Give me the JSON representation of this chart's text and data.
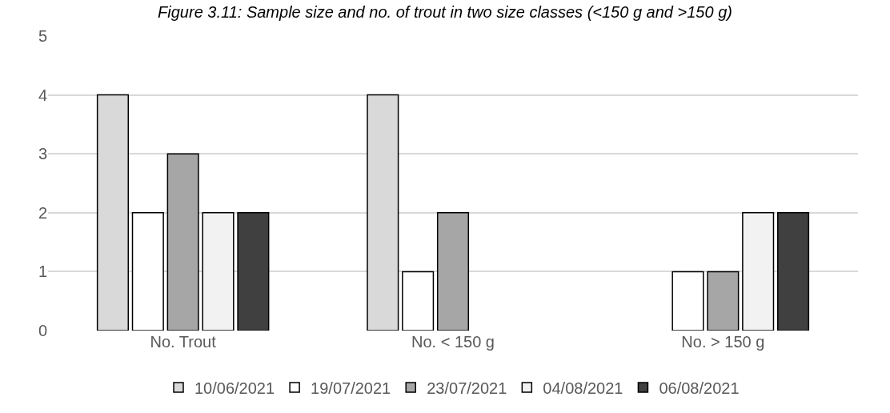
{
  "chart_data": {
    "type": "bar",
    "title": "Figure 3.11: Sample size and no. of trout in two size classes (<150 g and >150 g)",
    "categories": [
      "No. Trout",
      "No. < 150 g",
      "No. > 150 g"
    ],
    "series": [
      {
        "name": "10/06/2021",
        "color": "#d9d9d9",
        "values": [
          4,
          4,
          0
        ]
      },
      {
        "name": "19/07/2021",
        "color": "#ffffff",
        "values": [
          2,
          1,
          1
        ]
      },
      {
        "name": "23/07/2021",
        "color": "#a6a6a6",
        "values": [
          3,
          2,
          1
        ]
      },
      {
        "name": "04/08/2021",
        "color": "#f2f2f2",
        "values": [
          2,
          0,
          2
        ]
      },
      {
        "name": "06/08/2021",
        "color": "#404040",
        "values": [
          2,
          0,
          2
        ]
      }
    ],
    "ylim": [
      0,
      5
    ],
    "yticks": [
      0,
      1,
      2,
      3,
      4,
      5
    ],
    "grid": "y",
    "legend": "bottom"
  }
}
